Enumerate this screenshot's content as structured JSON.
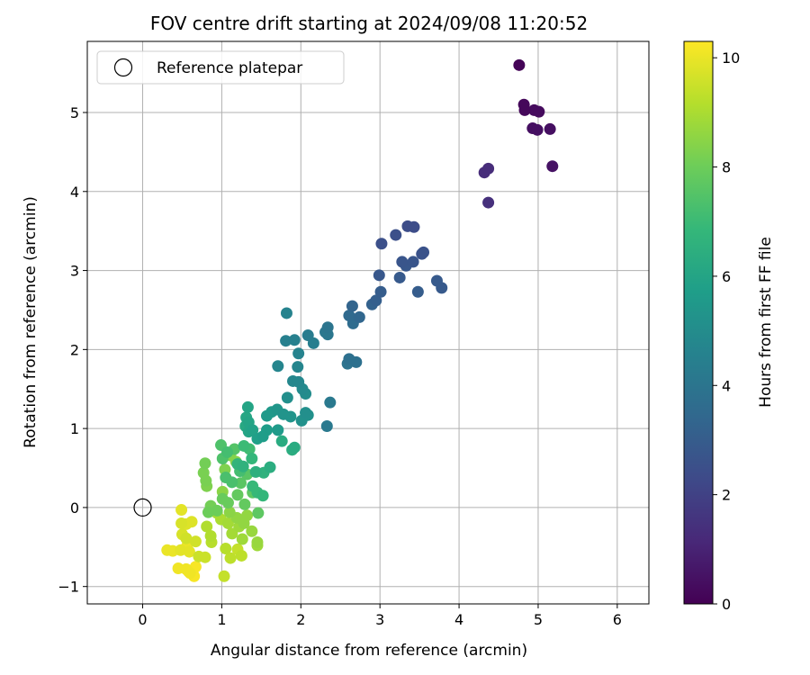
{
  "chart_data": {
    "type": "scatter",
    "title": "FOV centre drift starting at 2024/09/08 11:20:52",
    "xlabel": "Angular distance from reference (arcmin)",
    "ylabel": "Rotation from reference (arcmin)",
    "xlim": [
      -0.7,
      6.4
    ],
    "ylim": [
      -1.22,
      5.9
    ],
    "xticks": [
      0,
      1,
      2,
      3,
      4,
      5,
      6
    ],
    "yticks": [
      -1,
      0,
      1,
      2,
      3,
      4,
      5
    ],
    "grid": true,
    "legend": {
      "placement": "top-left",
      "entries": [
        "Reference platepar"
      ]
    },
    "reference_point": {
      "x": 0,
      "y": 0,
      "label": "Reference platepar"
    },
    "colorbar": {
      "label": "Hours from first FF file",
      "range": [
        0,
        10.3
      ],
      "ticks": [
        0,
        2,
        4,
        6,
        8,
        10
      ],
      "colormap": "viridis"
    },
    "points": [
      {
        "x": 4.76,
        "y": 5.6,
        "h": 0.1
      },
      {
        "x": 4.82,
        "y": 5.1,
        "h": 0.2
      },
      {
        "x": 4.83,
        "y": 5.03,
        "h": 0.2
      },
      {
        "x": 4.95,
        "y": 5.03,
        "h": 0.3
      },
      {
        "x": 5.01,
        "y": 5.01,
        "h": 0.3
      },
      {
        "x": 4.93,
        "y": 4.8,
        "h": 0.4
      },
      {
        "x": 4.99,
        "y": 4.78,
        "h": 0.4
      },
      {
        "x": 5.15,
        "y": 4.79,
        "h": 0.4
      },
      {
        "x": 5.18,
        "y": 4.32,
        "h": 0.5
      },
      {
        "x": 4.32,
        "y": 4.24,
        "h": 1.3
      },
      {
        "x": 4.37,
        "y": 4.29,
        "h": 1.3
      },
      {
        "x": 4.37,
        "y": 3.86,
        "h": 1.4
      },
      {
        "x": 3.35,
        "y": 3.56,
        "h": 2.4
      },
      {
        "x": 3.43,
        "y": 3.55,
        "h": 2.4
      },
      {
        "x": 3.2,
        "y": 3.45,
        "h": 2.5
      },
      {
        "x": 3.02,
        "y": 3.34,
        "h": 2.5
      },
      {
        "x": 3.53,
        "y": 3.21,
        "h": 2.6
      },
      {
        "x": 3.55,
        "y": 3.23,
        "h": 2.6
      },
      {
        "x": 3.28,
        "y": 3.11,
        "h": 2.7
      },
      {
        "x": 3.42,
        "y": 3.11,
        "h": 2.7
      },
      {
        "x": 3.33,
        "y": 3.06,
        "h": 2.8
      },
      {
        "x": 2.99,
        "y": 2.94,
        "h": 2.8
      },
      {
        "x": 3.25,
        "y": 2.91,
        "h": 2.9
      },
      {
        "x": 3.72,
        "y": 2.87,
        "h": 2.9
      },
      {
        "x": 3.78,
        "y": 2.78,
        "h": 2.9
      },
      {
        "x": 3.01,
        "y": 2.73,
        "h": 3.0
      },
      {
        "x": 3.48,
        "y": 2.73,
        "h": 3.0
      },
      {
        "x": 2.95,
        "y": 2.62,
        "h": 3.1
      },
      {
        "x": 2.9,
        "y": 2.57,
        "h": 3.2
      },
      {
        "x": 2.65,
        "y": 2.55,
        "h": 3.3
      },
      {
        "x": 2.74,
        "y": 2.41,
        "h": 3.4
      },
      {
        "x": 2.61,
        "y": 2.43,
        "h": 3.5
      },
      {
        "x": 2.66,
        "y": 2.33,
        "h": 3.6
      },
      {
        "x": 2.7,
        "y": 1.84,
        "h": 3.8
      },
      {
        "x": 2.61,
        "y": 1.88,
        "h": 3.8
      },
      {
        "x": 2.59,
        "y": 1.82,
        "h": 3.9
      },
      {
        "x": 2.34,
        "y": 2.28,
        "h": 4.0
      },
      {
        "x": 2.34,
        "y": 2.19,
        "h": 4.1
      },
      {
        "x": 2.31,
        "y": 2.22,
        "h": 4.1
      },
      {
        "x": 2.37,
        "y": 1.33,
        "h": 4.2
      },
      {
        "x": 2.33,
        "y": 1.03,
        "h": 4.2
      },
      {
        "x": 2.09,
        "y": 2.18,
        "h": 4.3
      },
      {
        "x": 2.16,
        "y": 2.08,
        "h": 4.4
      },
      {
        "x": 1.92,
        "y": 2.12,
        "h": 4.5
      },
      {
        "x": 1.81,
        "y": 2.11,
        "h": 4.5
      },
      {
        "x": 1.97,
        "y": 1.95,
        "h": 4.6
      },
      {
        "x": 1.82,
        "y": 2.46,
        "h": 4.6
      },
      {
        "x": 1.71,
        "y": 1.79,
        "h": 4.7
      },
      {
        "x": 1.96,
        "y": 1.78,
        "h": 4.7
      },
      {
        "x": 1.9,
        "y": 1.6,
        "h": 4.8
      },
      {
        "x": 1.97,
        "y": 1.59,
        "h": 4.8
      },
      {
        "x": 2.02,
        "y": 1.5,
        "h": 4.9
      },
      {
        "x": 2.06,
        "y": 1.44,
        "h": 5.0
      },
      {
        "x": 1.83,
        "y": 1.39,
        "h": 5.1
      },
      {
        "x": 2.06,
        "y": 1.2,
        "h": 5.1
      },
      {
        "x": 2.09,
        "y": 1.17,
        "h": 5.2
      },
      {
        "x": 2.01,
        "y": 1.1,
        "h": 5.2
      },
      {
        "x": 1.87,
        "y": 1.15,
        "h": 5.3
      },
      {
        "x": 1.78,
        "y": 1.18,
        "h": 5.3
      },
      {
        "x": 1.7,
        "y": 1.24,
        "h": 5.4
      },
      {
        "x": 1.63,
        "y": 1.21,
        "h": 5.5
      },
      {
        "x": 1.57,
        "y": 1.16,
        "h": 5.5
      },
      {
        "x": 1.71,
        "y": 0.98,
        "h": 5.6
      },
      {
        "x": 1.57,
        "y": 0.98,
        "h": 5.7
      },
      {
        "x": 1.52,
        "y": 0.9,
        "h": 5.7
      },
      {
        "x": 1.45,
        "y": 0.87,
        "h": 5.8
      },
      {
        "x": 1.39,
        "y": 0.98,
        "h": 5.9
      },
      {
        "x": 1.34,
        "y": 0.96,
        "h": 6.0
      },
      {
        "x": 1.34,
        "y": 1.08,
        "h": 6.0
      },
      {
        "x": 1.31,
        "y": 1.14,
        "h": 6.1
      },
      {
        "x": 1.3,
        "y": 1.03,
        "h": 6.2
      },
      {
        "x": 1.76,
        "y": 0.84,
        "h": 6.3
      },
      {
        "x": 1.92,
        "y": 0.76,
        "h": 6.3
      },
      {
        "x": 1.89,
        "y": 0.73,
        "h": 6.4
      },
      {
        "x": 1.61,
        "y": 0.51,
        "h": 6.4
      },
      {
        "x": 1.43,
        "y": 0.45,
        "h": 6.5
      },
      {
        "x": 1.53,
        "y": 0.44,
        "h": 6.6
      },
      {
        "x": 1.27,
        "y": 0.52,
        "h": 6.6
      },
      {
        "x": 1.2,
        "y": 0.55,
        "h": 6.7
      },
      {
        "x": 1.38,
        "y": 0.62,
        "h": 6.8
      },
      {
        "x": 1.52,
        "y": 0.15,
        "h": 6.8
      },
      {
        "x": 1.45,
        "y": 0.19,
        "h": 6.9
      },
      {
        "x": 1.39,
        "y": 0.27,
        "h": 6.9
      },
      {
        "x": 1.33,
        "y": 1.27,
        "h": 6.0
      },
      {
        "x": 1.28,
        "y": 0.78,
        "h": 7.0
      },
      {
        "x": 1.35,
        "y": 0.74,
        "h": 7.1
      },
      {
        "x": 1.07,
        "y": 0.7,
        "h": 7.2
      },
      {
        "x": 1.23,
        "y": 0.46,
        "h": 7.2
      },
      {
        "x": 1.13,
        "y": 0.32,
        "h": 7.3
      },
      {
        "x": 1.05,
        "y": 0.38,
        "h": 7.3
      },
      {
        "x": 1.01,
        "y": 0.62,
        "h": 7.4
      },
      {
        "x": 0.99,
        "y": 0.79,
        "h": 7.4
      },
      {
        "x": 1.16,
        "y": 0.74,
        "h": 7.5
      },
      {
        "x": 1.32,
        "y": 0.42,
        "h": 7.6
      },
      {
        "x": 1.24,
        "y": 0.31,
        "h": 7.6
      },
      {
        "x": 1.39,
        "y": 0.19,
        "h": 7.7
      },
      {
        "x": 1.46,
        "y": -0.07,
        "h": 7.7
      },
      {
        "x": 1.29,
        "y": 0.04,
        "h": 7.8
      },
      {
        "x": 1.2,
        "y": 0.16,
        "h": 7.8
      },
      {
        "x": 1.08,
        "y": 0.06,
        "h": 7.9
      },
      {
        "x": 1.01,
        "y": 0.11,
        "h": 7.9
      },
      {
        "x": 0.94,
        "y": -0.04,
        "h": 8.0
      },
      {
        "x": 0.83,
        "y": -0.06,
        "h": 8.0
      },
      {
        "x": 0.86,
        "y": 0.02,
        "h": 8.1
      },
      {
        "x": 0.79,
        "y": 0.56,
        "h": 8.1
      },
      {
        "x": 0.77,
        "y": 0.44,
        "h": 8.2
      },
      {
        "x": 0.8,
        "y": 0.34,
        "h": 8.2
      },
      {
        "x": 0.81,
        "y": 0.27,
        "h": 8.3
      },
      {
        "x": 1.04,
        "y": 0.48,
        "h": 8.3
      },
      {
        "x": 1.11,
        "y": 0.66,
        "h": 8.4
      },
      {
        "x": 1.18,
        "y": 0.58,
        "h": 8.4
      },
      {
        "x": 1.01,
        "y": 0.2,
        "h": 8.5
      },
      {
        "x": 1.1,
        "y": -0.06,
        "h": 8.5
      },
      {
        "x": 1.19,
        "y": -0.13,
        "h": 8.6
      },
      {
        "x": 1.32,
        "y": -0.1,
        "h": 8.6
      },
      {
        "x": 1.28,
        "y": -0.2,
        "h": 8.6
      },
      {
        "x": 1.38,
        "y": -0.3,
        "h": 8.7
      },
      {
        "x": 1.45,
        "y": -0.44,
        "h": 8.7
      },
      {
        "x": 1.45,
        "y": -0.48,
        "h": 8.8
      },
      {
        "x": 1.26,
        "y": -0.4,
        "h": 8.8
      },
      {
        "x": 1.22,
        "y": -0.24,
        "h": 8.8
      },
      {
        "x": 1.13,
        "y": -0.33,
        "h": 8.9
      },
      {
        "x": 1.08,
        "y": -0.2,
        "h": 8.9
      },
      {
        "x": 0.99,
        "y": -0.15,
        "h": 9.0
      },
      {
        "x": 0.94,
        "y": -0.07,
        "h": 9.0
      },
      {
        "x": 0.81,
        "y": -0.24,
        "h": 9.1
      },
      {
        "x": 0.86,
        "y": -0.36,
        "h": 9.1
      },
      {
        "x": 0.87,
        "y": -0.44,
        "h": 9.2
      },
      {
        "x": 1.05,
        "y": -0.52,
        "h": 9.2
      },
      {
        "x": 1.11,
        "y": -0.64,
        "h": 9.3
      },
      {
        "x": 1.25,
        "y": -0.61,
        "h": 9.3
      },
      {
        "x": 1.2,
        "y": -0.53,
        "h": 9.4
      },
      {
        "x": 1.03,
        "y": -0.87,
        "h": 9.4
      },
      {
        "x": 0.79,
        "y": -0.63,
        "h": 9.5
      },
      {
        "x": 0.71,
        "y": -0.62,
        "h": 9.5
      },
      {
        "x": 0.67,
        "y": -0.43,
        "h": 9.6
      },
      {
        "x": 0.55,
        "y": -0.39,
        "h": 9.6
      },
      {
        "x": 0.5,
        "y": -0.34,
        "h": 9.7
      },
      {
        "x": 0.49,
        "y": -0.2,
        "h": 9.7
      },
      {
        "x": 0.55,
        "y": -0.21,
        "h": 9.8
      },
      {
        "x": 0.62,
        "y": -0.18,
        "h": 9.8
      },
      {
        "x": 0.49,
        "y": -0.03,
        "h": 9.9
      },
      {
        "x": 0.48,
        "y": -0.54,
        "h": 9.9
      },
      {
        "x": 0.59,
        "y": -0.56,
        "h": 9.9
      },
      {
        "x": 0.56,
        "y": -0.49,
        "h": 10.0
      },
      {
        "x": 0.38,
        "y": -0.55,
        "h": 10.0
      },
      {
        "x": 0.31,
        "y": -0.54,
        "h": 10.0
      },
      {
        "x": 0.45,
        "y": -0.77,
        "h": 10.1
      },
      {
        "x": 0.55,
        "y": -0.78,
        "h": 10.1
      },
      {
        "x": 0.6,
        "y": -0.83,
        "h": 10.1
      },
      {
        "x": 0.65,
        "y": -0.87,
        "h": 10.2
      },
      {
        "x": 0.58,
        "y": -0.81,
        "h": 10.2
      },
      {
        "x": 0.67,
        "y": -0.75,
        "h": 10.2
      }
    ]
  }
}
